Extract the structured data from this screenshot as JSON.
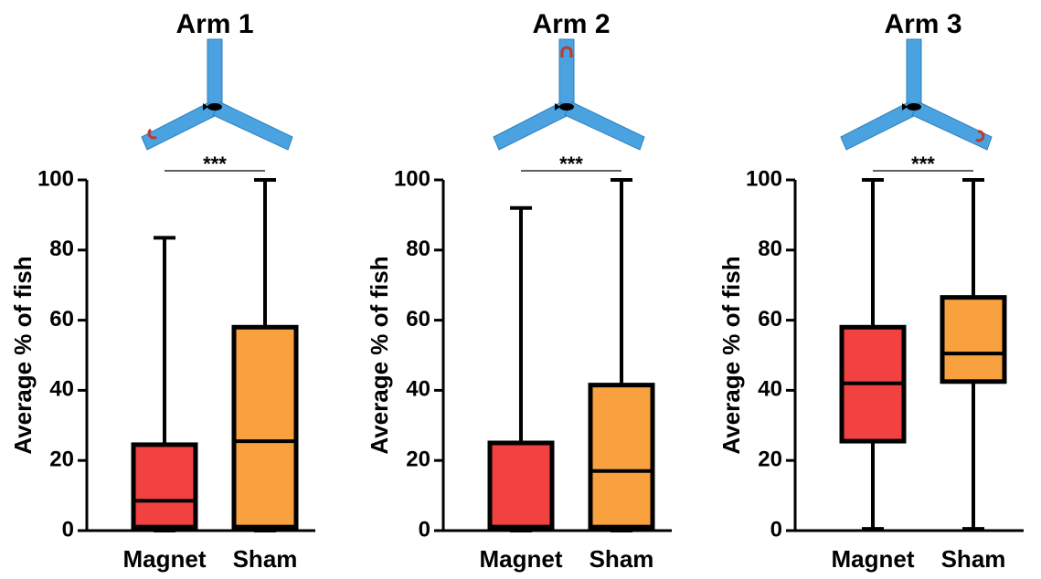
{
  "chart_data": [
    {
      "type": "box",
      "title": "Arm 1",
      "ylabel": "Average % of fish",
      "categories": [
        "Magnet",
        "Sham"
      ],
      "colors": [
        "#f24141",
        "#f9a13f"
      ],
      "boxes": [
        {
          "min": 0,
          "q1": 1,
          "median": 8.5,
          "q3": 24.5,
          "max": 83.5
        },
        {
          "min": 0,
          "q1": 1,
          "median": 25.5,
          "q3": 58,
          "max": 100
        }
      ],
      "ylim": [
        0,
        100
      ],
      "yticks": [
        0,
        20,
        40,
        60,
        80,
        100
      ],
      "significance": "***"
    },
    {
      "type": "box",
      "title": "Arm 2",
      "ylabel": "Average % of fish",
      "categories": [
        "Magnet",
        "Sham"
      ],
      "colors": [
        "#f24141",
        "#f9a13f"
      ],
      "boxes": [
        {
          "min": 0,
          "q1": 1,
          "median": 1,
          "q3": 25,
          "max": 92
        },
        {
          "min": 0,
          "q1": 1,
          "median": 17,
          "q3": 41.5,
          "max": 100
        }
      ],
      "ylim": [
        0,
        100
      ],
      "yticks": [
        0,
        20,
        40,
        60,
        80,
        100
      ],
      "significance": "***"
    },
    {
      "type": "box",
      "title": "Arm 3",
      "ylabel": "Average % of fish",
      "categories": [
        "Magnet",
        "Sham"
      ],
      "colors": [
        "#f24141",
        "#f9a13f"
      ],
      "boxes": [
        {
          "min": 0.5,
          "q1": 25.5,
          "median": 42,
          "q3": 58,
          "max": 100
        },
        {
          "min": 0.5,
          "q1": 42.5,
          "median": 50.5,
          "q3": 66.5,
          "max": 100
        }
      ],
      "ylim": [
        0,
        100
      ],
      "yticks": [
        0,
        20,
        40,
        60,
        80,
        100
      ],
      "significance": "***"
    }
  ]
}
